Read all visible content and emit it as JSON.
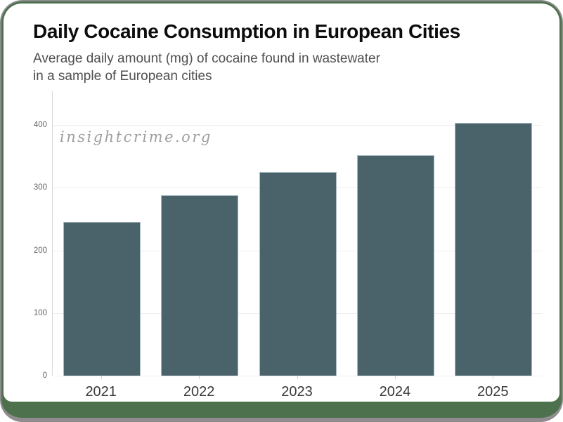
{
  "frame": {
    "background_color": "#4c714c",
    "border_color": "#8f8b8f",
    "card_color": "#ffffff"
  },
  "header": {
    "title": "Daily Cocaine Consumption in European Cities",
    "subtitle_lines": [
      "Average daily amount (mg) of cocaine found in wastewater",
      "in a sample of European cities"
    ]
  },
  "watermark": {
    "text": "insightcrime.org"
  },
  "chart_data": {
    "type": "bar",
    "title": "Daily Cocaine Consumption in European Cities",
    "subtitle": "Average daily amount (mg) of cocaine found in wastewater in a sample of European cities",
    "categories": [
      "2021",
      "2022",
      "2023",
      "2024",
      "2025"
    ],
    "values": [
      245,
      288,
      325,
      352,
      404
    ],
    "xlabel": "",
    "ylabel": "",
    "ylim": [
      0,
      454
    ],
    "yticks": [
      0,
      100,
      200,
      300,
      400
    ],
    "grid": true,
    "legend": false,
    "bar_color": "#4a626a",
    "bar_border_color": "#a9bcc3",
    "gridline_color": "#efefef",
    "axis_line_color": "#d8d8d8",
    "ytick_label_color": "#666666",
    "xtick_label_color": "#383838",
    "watermark": "insightcrime.org"
  }
}
